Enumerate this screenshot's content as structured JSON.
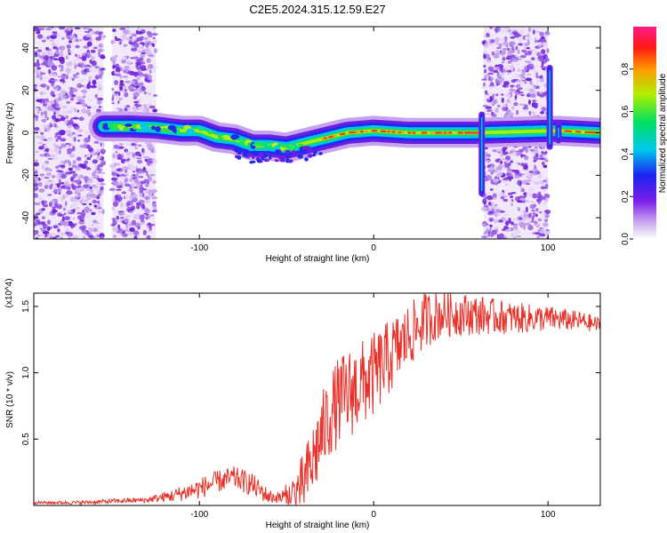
{
  "title": "C2E5.2024.315.12.59.E27",
  "chart_data": [
    {
      "type": "heatmap",
      "xlabel": "Height of straight line (km)",
      "ylabel": "Frequency (Hz)",
      "xlim": [
        -195,
        130
      ],
      "ylim": [
        -50,
        50
      ],
      "x_ticks": [
        -100,
        0,
        100
      ],
      "y_ticks": [
        -40,
        -20,
        0,
        20,
        40
      ],
      "x_tick_labels": [
        "-100",
        "0",
        "100"
      ],
      "y_tick_labels": [
        "-40",
        "-20",
        "0",
        "20",
        "40"
      ],
      "colorbar": {
        "label": "Normalized spectral amplitude",
        "range": [
          0,
          1
        ],
        "ticks": [
          0.0,
          0.2,
          0.4,
          0.6,
          0.8
        ],
        "tick_labels": [
          "0.0",
          "0.2",
          "0.4",
          "0.6",
          "0.8"
        ]
      },
      "ridge": [
        {
          "x": -155,
          "y": 3.0
        },
        {
          "x": -140,
          "y": 3.0
        },
        {
          "x": -125,
          "y": 2.5
        },
        {
          "x": -110,
          "y": 1.0
        },
        {
          "x": -100,
          "y": 1.0
        },
        {
          "x": -90,
          "y": -2.0
        },
        {
          "x": -80,
          "y": -3.0
        },
        {
          "x": -70,
          "y": -6.0
        },
        {
          "x": -60,
          "y": -6.0
        },
        {
          "x": -50,
          "y": -7.0
        },
        {
          "x": -45,
          "y": -6.0
        },
        {
          "x": -35,
          "y": -4.0
        },
        {
          "x": -25,
          "y": -2.0
        },
        {
          "x": -15,
          "y": 0.0
        },
        {
          "x": 0,
          "y": 1.0
        },
        {
          "x": 20,
          "y": 0.0
        },
        {
          "x": 40,
          "y": 0.0
        },
        {
          "x": 58,
          "y": 0.0
        },
        {
          "x": 105,
          "y": 1.0
        },
        {
          "x": 130,
          "y": 0.0
        }
      ],
      "noise_bands": [
        [
          -195,
          -155
        ],
        [
          -150,
          -125
        ],
        [
          63,
          100
        ]
      ],
      "spikes": [
        {
          "x": 62,
          "y_range": [
            -30,
            10
          ]
        },
        {
          "x": 101,
          "y_range": [
            -8,
            32
          ]
        },
        {
          "x": 106,
          "y_range": [
            -5,
            5
          ]
        }
      ]
    },
    {
      "type": "line",
      "xlabel": "Height of straight line (km)",
      "ylabel": "SNR (10 * v/v)",
      "y_multiplier": "(x10^4)",
      "xlim": [
        -195,
        130
      ],
      "ylim": [
        0,
        1.6
      ],
      "x_ticks": [
        -100,
        0,
        100
      ],
      "y_ticks": [
        0.5,
        1.0,
        1.5
      ],
      "x_tick_labels": [
        "-100",
        "0",
        "100"
      ],
      "y_tick_labels": [
        "0.5",
        "1.0",
        "1.5"
      ],
      "series": [
        {
          "color": "#e8322a",
          "envelope": [
            {
              "x": -195,
              "y": 0.02
            },
            {
              "x": -170,
              "y": 0.02
            },
            {
              "x": -150,
              "y": 0.03
            },
            {
              "x": -130,
              "y": 0.04
            },
            {
              "x": -115,
              "y": 0.07
            },
            {
              "x": -100,
              "y": 0.12
            },
            {
              "x": -90,
              "y": 0.17
            },
            {
              "x": -80,
              "y": 0.2
            },
            {
              "x": -70,
              "y": 0.15
            },
            {
              "x": -60,
              "y": 0.06
            },
            {
              "x": -50,
              "y": 0.05
            },
            {
              "x": -45,
              "y": 0.08
            },
            {
              "x": -40,
              "y": 0.15
            },
            {
              "x": -35,
              "y": 0.3
            },
            {
              "x": -30,
              "y": 0.5
            },
            {
              "x": -25,
              "y": 0.65
            },
            {
              "x": -20,
              "y": 0.75
            },
            {
              "x": -10,
              "y": 0.85
            },
            {
              "x": 0,
              "y": 0.95
            },
            {
              "x": 10,
              "y": 1.1
            },
            {
              "x": 20,
              "y": 1.25
            },
            {
              "x": 30,
              "y": 1.38
            },
            {
              "x": 40,
              "y": 1.43
            },
            {
              "x": 60,
              "y": 1.42
            },
            {
              "x": 80,
              "y": 1.4
            },
            {
              "x": 100,
              "y": 1.4
            },
            {
              "x": 120,
              "y": 1.38
            },
            {
              "x": 130,
              "y": 1.35
            }
          ],
          "noise": [
            {
              "x": -195,
              "a": 0.01
            },
            {
              "x": -130,
              "a": 0.02
            },
            {
              "x": -100,
              "a": 0.08
            },
            {
              "x": -70,
              "a": 0.09
            },
            {
              "x": -55,
              "a": 0.04
            },
            {
              "x": -35,
              "a": 0.3
            },
            {
              "x": -15,
              "a": 0.35
            },
            {
              "x": 0,
              "a": 0.32
            },
            {
              "x": 20,
              "a": 0.25
            },
            {
              "x": 40,
              "a": 0.18
            },
            {
              "x": 80,
              "a": 0.12
            },
            {
              "x": 130,
              "a": 0.06
            }
          ]
        }
      ]
    }
  ]
}
